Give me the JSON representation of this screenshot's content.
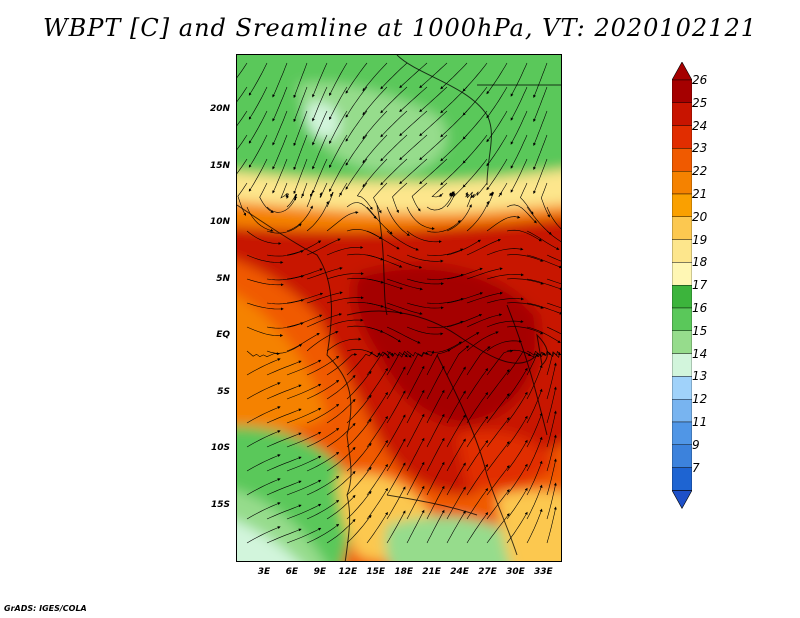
{
  "title": "WBPT [C] and Sreamline at 1000hPa, VT: 2020102121",
  "credit": "GrADS: IGES/COLA",
  "map": {
    "lat_range": [
      -20,
      25
    ],
    "lon_range": [
      0,
      35
    ],
    "lat_ticks": [
      {
        "value": 20,
        "label": "20N"
      },
      {
        "value": 15,
        "label": "15N"
      },
      {
        "value": 10,
        "label": "10N"
      },
      {
        "value": 5,
        "label": "5N"
      },
      {
        "value": 0,
        "label": "EQ"
      },
      {
        "value": -5,
        "label": "5S"
      },
      {
        "value": -10,
        "label": "10S"
      },
      {
        "value": -15,
        "label": "15S"
      }
    ],
    "lon_ticks": [
      {
        "value": 3,
        "label": "3E"
      },
      {
        "value": 6,
        "label": "6E"
      },
      {
        "value": 9,
        "label": "9E"
      },
      {
        "value": 12,
        "label": "12E"
      },
      {
        "value": 15,
        "label": "15E"
      },
      {
        "value": 18,
        "label": "18E"
      },
      {
        "value": 21,
        "label": "21E"
      },
      {
        "value": 24,
        "label": "24E"
      },
      {
        "value": 27,
        "label": "27E"
      },
      {
        "value": 30,
        "label": "30E"
      },
      {
        "value": 33,
        "label": "33E"
      }
    ]
  },
  "colorbar": {
    "levels": [
      {
        "label": "26",
        "color": "#a50000"
      },
      {
        "label": "25",
        "color": "#c81400"
      },
      {
        "label": "24",
        "color": "#e12d00"
      },
      {
        "label": "23",
        "color": "#f05a00"
      },
      {
        "label": "22",
        "color": "#f58200"
      },
      {
        "label": "21",
        "color": "#faa000"
      },
      {
        "label": "20",
        "color": "#fcc850"
      },
      {
        "label": "19",
        "color": "#fde68c"
      },
      {
        "label": "18",
        "color": "#fff7b4"
      },
      {
        "label": "17",
        "color": "#3cb43c"
      },
      {
        "label": "16",
        "color": "#5ac85a"
      },
      {
        "label": "15",
        "color": "#96dc8c"
      },
      {
        "label": "14",
        "color": "#d2f5dc"
      },
      {
        "label": "13",
        "color": "#a0d2fa"
      },
      {
        "label": "12",
        "color": "#78b4f0"
      },
      {
        "label": "11",
        "color": "#5096e6"
      },
      {
        "label": "9",
        "color": "#3c82dc"
      },
      {
        "label": "7",
        "color": "#1e64d2"
      }
    ],
    "top_color": "#a50000",
    "bottom_color": "#1e50c8"
  }
}
